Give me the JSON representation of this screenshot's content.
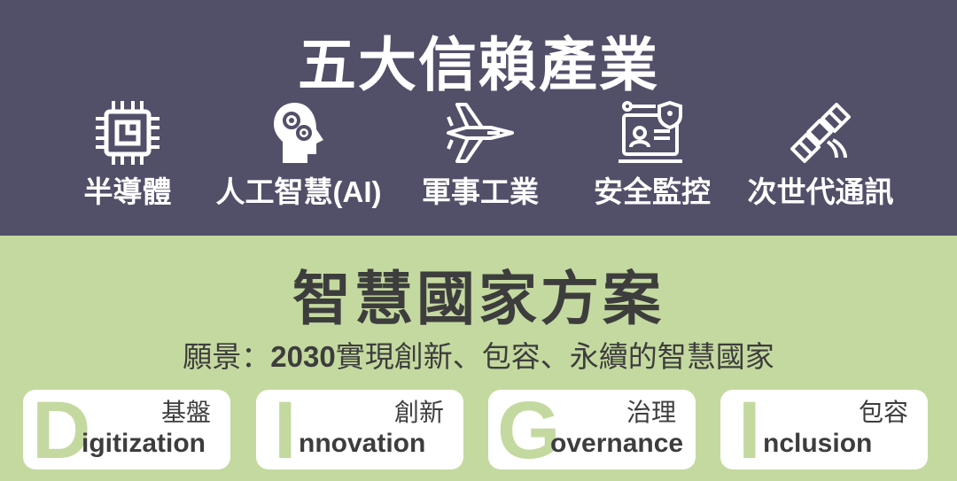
{
  "header": {
    "title": "五大信賴產業",
    "industries": [
      {
        "label": "半導體",
        "icon": "chip-icon"
      },
      {
        "label": "人工智慧(AI)",
        "icon": "brain-gears-icon"
      },
      {
        "label": "軍事工業",
        "icon": "fighter-jet-icon"
      },
      {
        "label": "安全監控",
        "icon": "security-monitor-icon"
      },
      {
        "label": "次世代通訊",
        "icon": "satellite-icon"
      }
    ],
    "colors": {
      "background": "#524f69",
      "text": "#ffffff"
    }
  },
  "smart_nation": {
    "title": "智慧國家方案",
    "vision_prefix": "願景：",
    "vision_year": "2030",
    "vision_text": "實現創新、包容、永續的智慧國家",
    "cards": [
      {
        "letter": "D",
        "rest": "igitization",
        "zh": "基盤"
      },
      {
        "letter": "I",
        "rest": "nnovation",
        "zh": "創新"
      },
      {
        "letter": "G",
        "rest": "overnance",
        "zh": "治理"
      },
      {
        "letter": "I",
        "rest": "nclusion",
        "zh": "包容"
      }
    ],
    "colors": {
      "background": "#c4d99f",
      "accent_letter": "#c4d99f",
      "text": "#3d3d3d",
      "card": "#ffffff"
    }
  }
}
